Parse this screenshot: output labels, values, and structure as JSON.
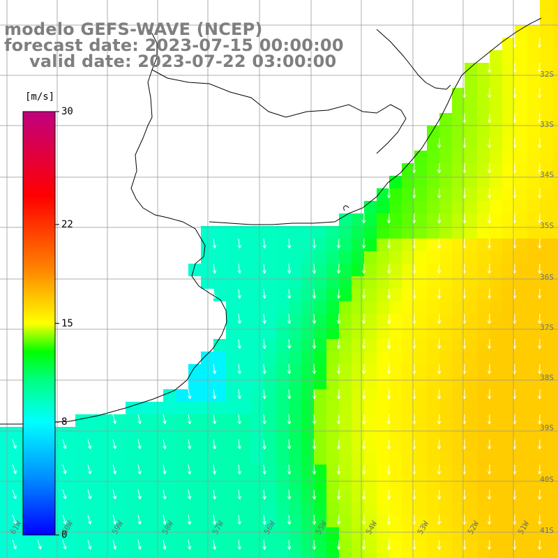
{
  "title": {
    "model": "modelo GEFS-WAVE (NCEP)",
    "forecast_date": "forecast date: 2023-07-15 00:00:00",
    "valid_date": "valid date: 2023-07-22 03:00:00"
  },
  "colorbar": {
    "unit": "[m/s]",
    "ticks": [
      {
        "label": "30",
        "value": 30
      },
      {
        "label": "22",
        "value": 22
      },
      {
        "label": "15",
        "value": 15
      },
      {
        "label": "8",
        "value": 8
      },
      {
        "label": "0",
        "value": 0
      }
    ],
    "stops": [
      {
        "value": 0,
        "color": "#0000ff"
      },
      {
        "value": 4,
        "color": "#008cff"
      },
      {
        "value": 8,
        "color": "#00ffff"
      },
      {
        "value": 11,
        "color": "#00ff80"
      },
      {
        "value": 13,
        "color": "#00ff00"
      },
      {
        "value": 15,
        "color": "#ffff00"
      },
      {
        "value": 19,
        "color": "#ff8000"
      },
      {
        "value": 24,
        "color": "#ff0000"
      },
      {
        "value": 30,
        "color": "#c0007f"
      }
    ]
  },
  "axes": {
    "lat_labels": [
      "32S",
      "33S",
      "34S",
      "35S",
      "36S",
      "37S",
      "38S",
      "39S",
      "40S",
      "41S"
    ],
    "lon_labels": [
      "61W",
      "60W",
      "59W",
      "58W",
      "57W",
      "56W",
      "55W",
      "54W",
      "53W",
      "52W",
      "51W"
    ]
  },
  "variable": "wind-speed-and-direction",
  "colors": {
    "land": "#ffffff",
    "coast": "#000000",
    "grid": "#9a9a9a",
    "arrows": "#ffffff",
    "title": "#7f7f7f"
  }
}
